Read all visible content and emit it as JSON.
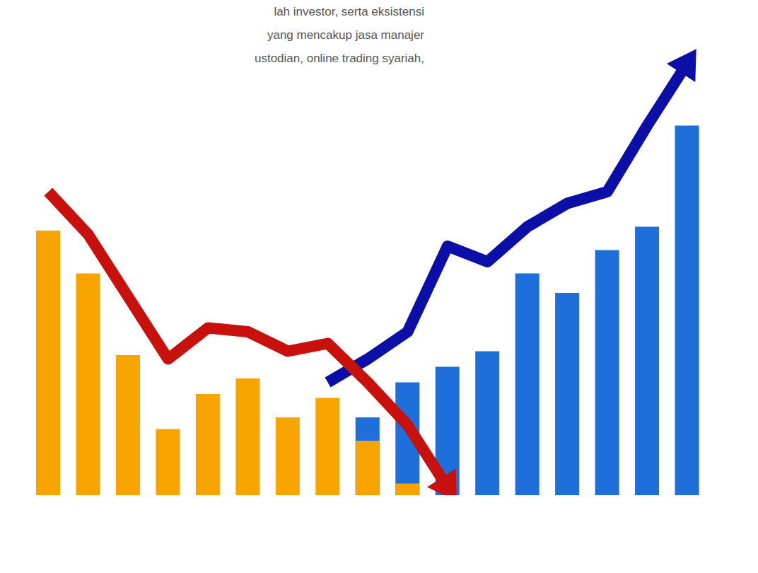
{
  "text": {
    "lines": [
      "lah investor, serta eksistensi",
      "yang mencakup jasa manajer",
      "ustodian, online trading syariah,"
    ]
  },
  "chart_data": {
    "type": "bar",
    "categories": [
      null,
      null,
      null,
      null,
      null,
      null,
      null,
      null,
      null,
      null,
      null,
      null,
      null,
      null,
      null,
      null,
      null
    ],
    "ylim": [
      0,
      120
    ],
    "tick_labels": false,
    "series": [
      {
        "type": "bar",
        "color": "#1e6fd9",
        "values": [
          null,
          null,
          null,
          null,
          null,
          null,
          null,
          null,
          20,
          29,
          33,
          37,
          57,
          52,
          63,
          69,
          95
        ]
      },
      {
        "type": "line",
        "color": "#0b0fa8",
        "values": [
          null,
          null,
          null,
          null,
          null,
          null,
          null,
          29,
          35,
          42,
          64,
          60,
          69,
          75,
          78,
          95,
          111
        ]
      },
      {
        "type": "bar",
        "color": "#f7a400",
        "values": [
          68,
          57,
          36,
          17,
          26,
          30,
          20,
          25,
          14,
          3,
          null,
          null,
          null,
          null,
          null,
          null,
          null
        ]
      },
      {
        "type": "line",
        "color": "#c8100c",
        "values": [
          78,
          67,
          51,
          35,
          43,
          42,
          37,
          39,
          29,
          18,
          2,
          null,
          null,
          null,
          null,
          null,
          null
        ]
      }
    ]
  }
}
